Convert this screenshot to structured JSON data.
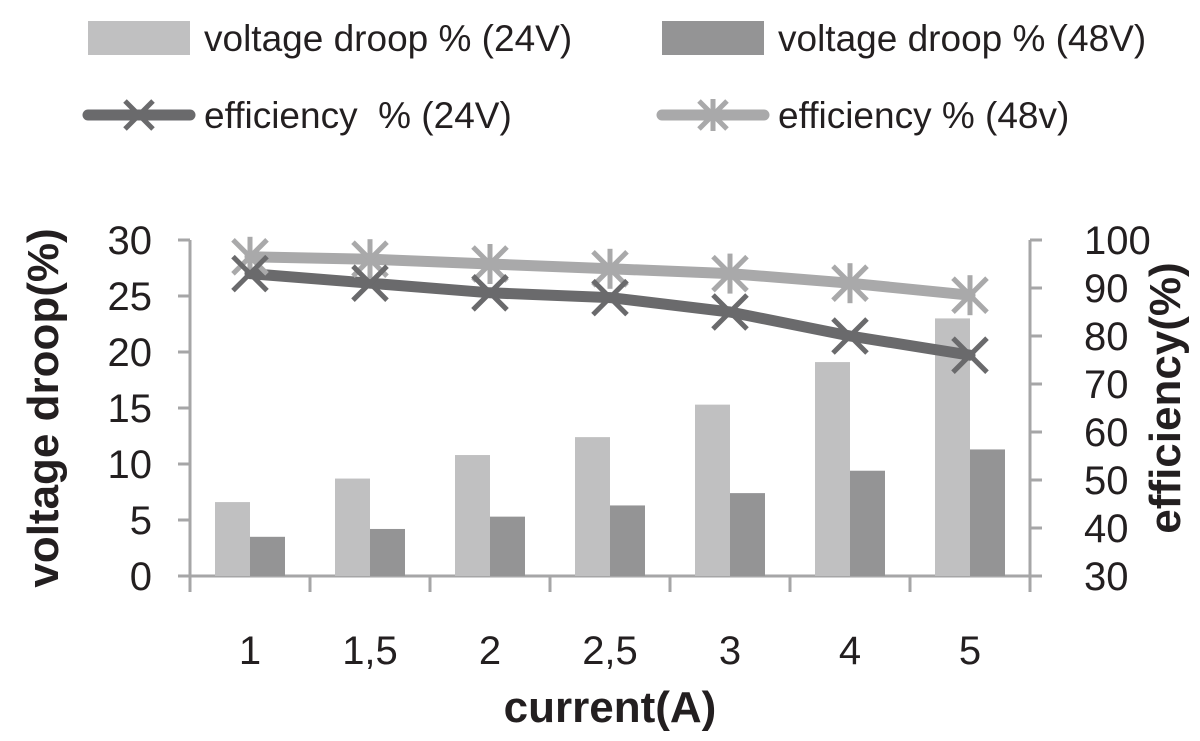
{
  "chart_data": {
    "type": "bar",
    "categories": [
      "1",
      "1,5",
      "2",
      "2,5",
      "3",
      "4",
      "5"
    ],
    "xlabel": "current(A)",
    "ylabel": "voltage droop(%)",
    "y2label": "efficiency(%)",
    "ylim": [
      0,
      30
    ],
    "y2lim": [
      30,
      100
    ],
    "yticks": [
      "0",
      "5",
      "10",
      "15",
      "20",
      "25",
      "30"
    ],
    "y2ticks": [
      "30",
      "40",
      "50",
      "60",
      "70",
      "80",
      "90",
      "100"
    ],
    "grid": false,
    "legend_position": "top",
    "series": [
      {
        "name": "voltage droop % (24V)",
        "kind": "bar",
        "axis": "left",
        "color": "#c0c0c1",
        "values": [
          6.6,
          8.7,
          10.8,
          12.4,
          15.3,
          19.1,
          23.0
        ]
      },
      {
        "name": "voltage droop % (48V)",
        "kind": "bar",
        "axis": "left",
        "color": "#949495",
        "values": [
          3.5,
          4.2,
          5.3,
          6.3,
          7.4,
          9.4,
          11.3
        ]
      },
      {
        "name": "efficiency  % (24V)",
        "kind": "line",
        "axis": "right",
        "marker": "x",
        "color": "#6a6a6c",
        "values": [
          93,
          91,
          89,
          88,
          85,
          80,
          76
        ]
      },
      {
        "name": "efficiency % (48v)",
        "kind": "line",
        "axis": "right",
        "marker": "star",
        "color": "#a9a9aa",
        "values": [
          96.5,
          96,
          95,
          94,
          93,
          91,
          88.5
        ]
      }
    ]
  }
}
